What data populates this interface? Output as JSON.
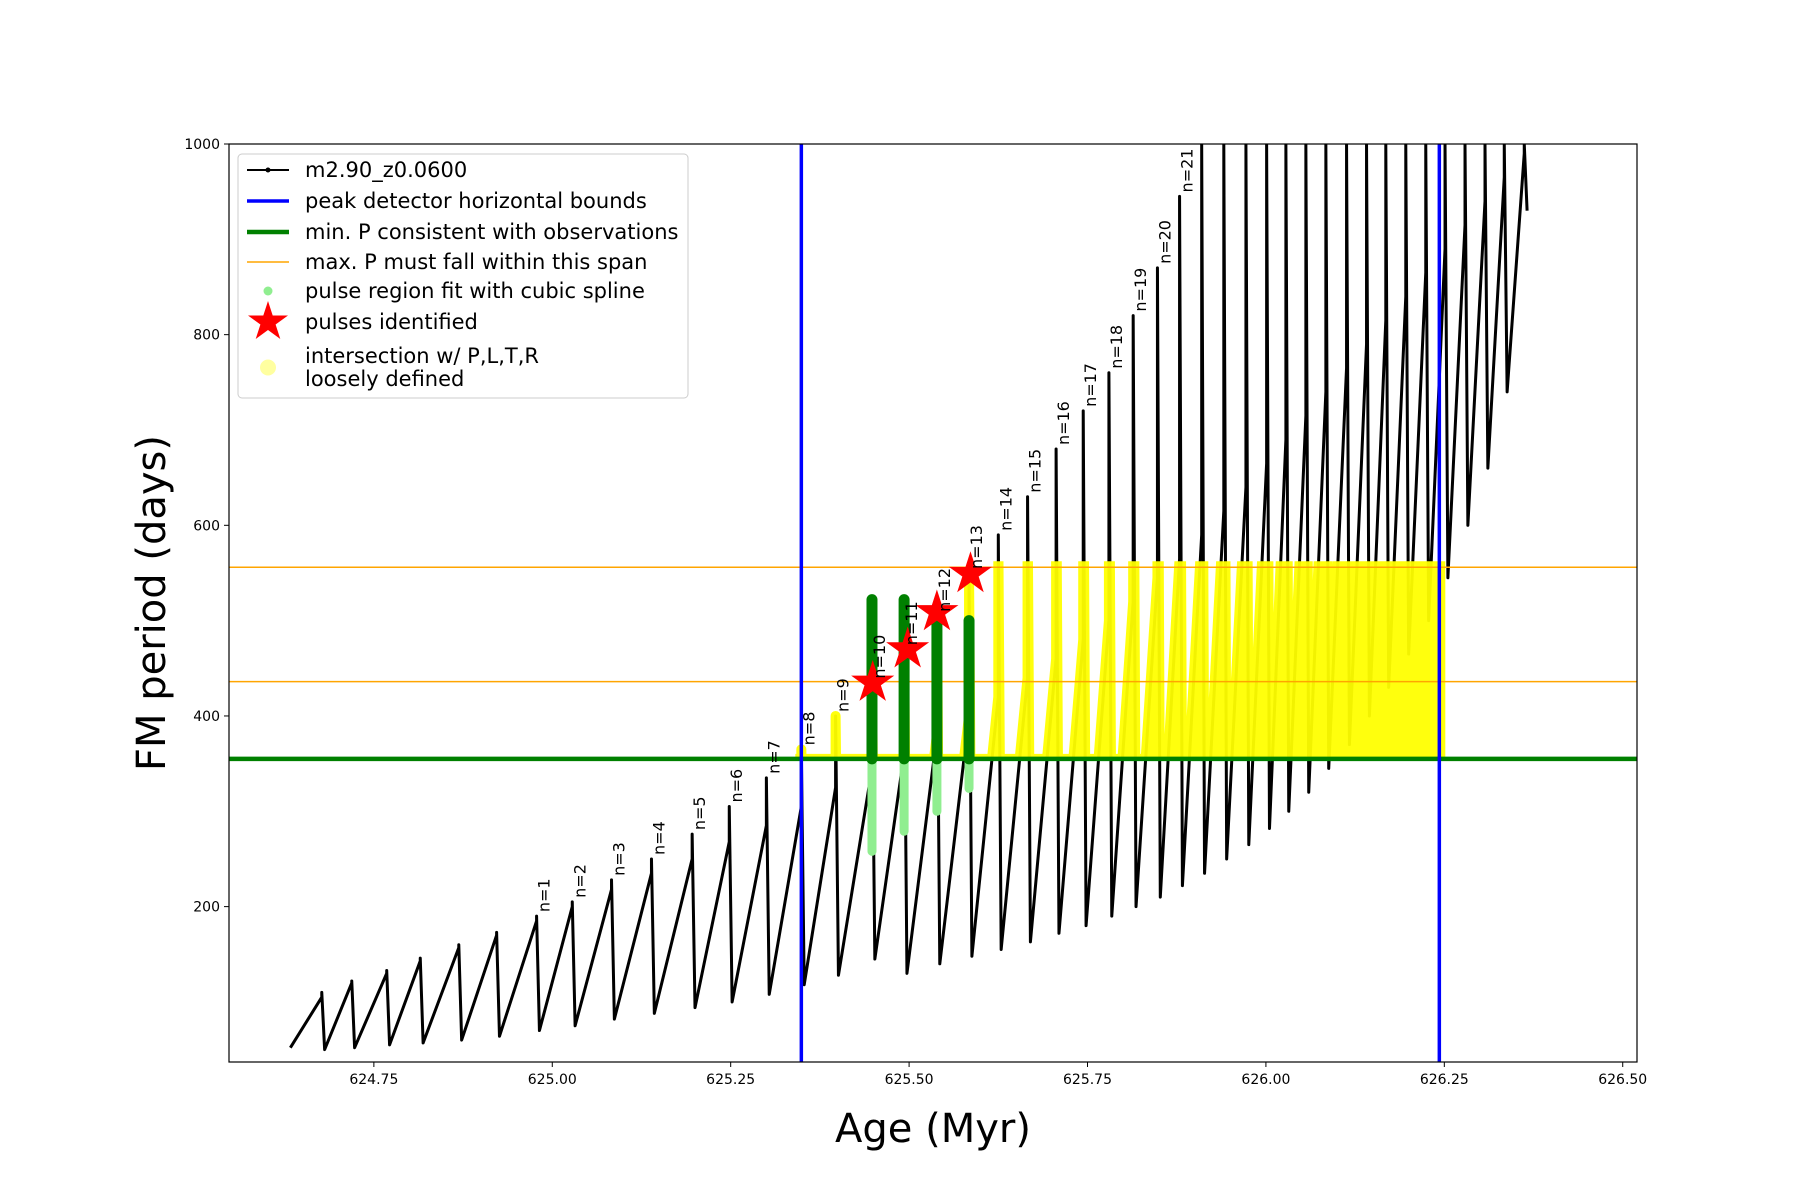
{
  "chart_data": {
    "type": "line",
    "xlabel": "Age (Myr)",
    "ylabel": "FM period (days)",
    "xlim": [
      624.547,
      626.52
    ],
    "ylim": [
      37,
      1000
    ],
    "xticks": [
      624.75,
      {
        "value": 625,
        "label": "625.00"
      },
      625.25,
      {
        "value": 625.5,
        "label": "625.50"
      },
      625.75,
      {
        "value": 626,
        "label": "626.00"
      },
      626.25,
      {
        "value": 626.5,
        "label": "626.50"
      }
    ],
    "yticks": [
      200,
      400,
      600,
      800,
      1000
    ],
    "legend": "upper left",
    "series": [
      {
        "name": "m2.90_z0.0600",
        "color": "#000000",
        "x": [
          624.633,
          624.677,
          624.677,
          624.681,
          624.719,
          624.719,
          624.723,
          624.768,
          624.768,
          624.772,
          624.815,
          624.815,
          624.819,
          624.869,
          624.869,
          624.873,
          624.922,
          624.922,
          624.926,
          624.978,
          624.978,
          624.982,
          625.028,
          625.028,
          625.032,
          625.083,
          625.083,
          625.087,
          625.139,
          625.139,
          625.143,
          625.196,
          625.196,
          625.2,
          625.248,
          625.248,
          625.252,
          625.3,
          625.3,
          625.304,
          625.349,
          625.349,
          625.353,
          625.397,
          625.397,
          625.401,
          625.448,
          625.448,
          625.452,
          625.493,
          625.493,
          625.497,
          625.539,
          625.539,
          625.543,
          625.584,
          625.584,
          625.588,
          625.625,
          625.625,
          625.629,
          625.666,
          625.666,
          625.67,
          625.706,
          625.706,
          625.71,
          625.744,
          625.744,
          625.748,
          625.78,
          625.78,
          625.784,
          625.814,
          625.814,
          625.818,
          625.848,
          625.848,
          625.852,
          625.879,
          625.879,
          625.883,
          625.91,
          625.91,
          625.914,
          625.941,
          625.941,
          625.945,
          625.972,
          625.972,
          625.976,
          626.001,
          626.001,
          626.005,
          626.028,
          626.028,
          626.032,
          626.056,
          626.056,
          626.06,
          626.084,
          626.084,
          626.088,
          626.113,
          626.113,
          626.117,
          626.141,
          626.141,
          626.145,
          626.168,
          626.168,
          626.172,
          626.196,
          626.196,
          626.2,
          626.224,
          626.224,
          626.228,
          626.251,
          626.251,
          626.255,
          626.279,
          626.279,
          626.283,
          626.307,
          626.307,
          626.311,
          626.334,
          626.334,
          626.338,
          626.362,
          626.362,
          626.366
        ],
        "values": [
          52,
          105,
          110,
          50,
          120,
          122,
          52,
          130,
          133,
          55,
          143,
          146,
          57,
          157,
          160,
          60,
          170,
          173,
          64,
          185,
          190,
          70,
          200,
          205,
          75,
          218,
          228,
          82,
          235,
          250,
          88,
          250,
          276,
          94,
          268,
          305,
          100,
          285,
          335,
          108,
          305,
          365,
          118,
          325,
          400,
          128,
          345,
          435,
          145,
          360,
          470,
          130,
          380,
          505,
          140,
          400,
          550,
          148,
          420,
          590,
          155,
          440,
          630,
          163,
          460,
          680,
          172,
          480,
          720,
          180,
          500,
          760,
          190,
          520,
          820,
          200,
          545,
          870,
          210,
          565,
          945,
          222,
          590,
          1000,
          235,
          615,
          1000,
          250,
          640,
          1000,
          265,
          665,
          1000,
          282,
          690,
          1000,
          300,
          715,
          1000,
          320,
          740,
          1000,
          345,
          765,
          1000,
          370,
          790,
          1000,
          400,
          815,
          1000,
          430,
          840,
          1000,
          465,
          865,
          1000,
          500,
          890,
          1000,
          545,
          915,
          1000,
          600,
          940,
          1000,
          660,
          965,
          1000,
          740,
          990,
          1000,
          930
        ]
      }
    ],
    "bounds": {
      "name": "peak detector horizontal bounds",
      "color": "#0000ff",
      "x": [
        625.349,
        626.243
      ]
    },
    "min_period": {
      "name": "min. P consistent with observations",
      "color": "#008000",
      "value": 355
    },
    "max_period": {
      "name": "max. P must fall within this span",
      "color": "#ffa500",
      "values": [
        436,
        556
      ]
    },
    "pulse_fits": {
      "name": "pulse region fit with cubic spline",
      "color": "#90ee90",
      "core_color": "#008000",
      "x": [
        625.448,
        625.493,
        625.539,
        625.584
      ],
      "low": [
        258,
        279,
        300,
        324
      ],
      "high": [
        522,
        522,
        500,
        500
      ]
    },
    "pulses": {
      "name": "pulses identified",
      "color": "#ff0000",
      "x": [
        625.449,
        625.498,
        625.539,
        625.586
      ],
      "values": [
        435,
        470,
        509,
        549
      ]
    },
    "intersection": {
      "name": [
        "intersection w/ P,L,T,R",
        "loosely defined"
      ],
      "color": "#ffff00",
      "legend_color": "#ffffa0"
    },
    "annotations": [
      {
        "text": "n=1",
        "x": 624.978,
        "y": 190
      },
      {
        "text": "n=2",
        "x": 625.028,
        "y": 205
      },
      {
        "text": "n=3",
        "x": 625.083,
        "y": 228
      },
      {
        "text": "n=4",
        "x": 625.139,
        "y": 250
      },
      {
        "text": "n=5",
        "x": 625.196,
        "y": 276
      },
      {
        "text": "n=6",
        "x": 625.248,
        "y": 305
      },
      {
        "text": "n=7",
        "x": 625.3,
        "y": 335
      },
      {
        "text": "n=8",
        "x": 625.349,
        "y": 365
      },
      {
        "text": "n=9",
        "x": 625.397,
        "y": 400
      },
      {
        "text": "n=10",
        "x": 625.448,
        "y": 435
      },
      {
        "text": "n=11",
        "x": 625.493,
        "y": 470
      },
      {
        "text": "n=12",
        "x": 625.539,
        "y": 505
      },
      {
        "text": "n=13",
        "x": 625.584,
        "y": 550
      },
      {
        "text": "n=14",
        "x": 625.625,
        "y": 590
      },
      {
        "text": "n=15",
        "x": 625.666,
        "y": 630
      },
      {
        "text": "n=16",
        "x": 625.706,
        "y": 680
      },
      {
        "text": "n=17",
        "x": 625.744,
        "y": 720
      },
      {
        "text": "n=18",
        "x": 625.78,
        "y": 760
      },
      {
        "text": "n=19",
        "x": 625.814,
        "y": 820
      },
      {
        "text": "n=20",
        "x": 625.848,
        "y": 870
      },
      {
        "text": "n=21",
        "x": 625.879,
        "y": 945
      }
    ]
  }
}
